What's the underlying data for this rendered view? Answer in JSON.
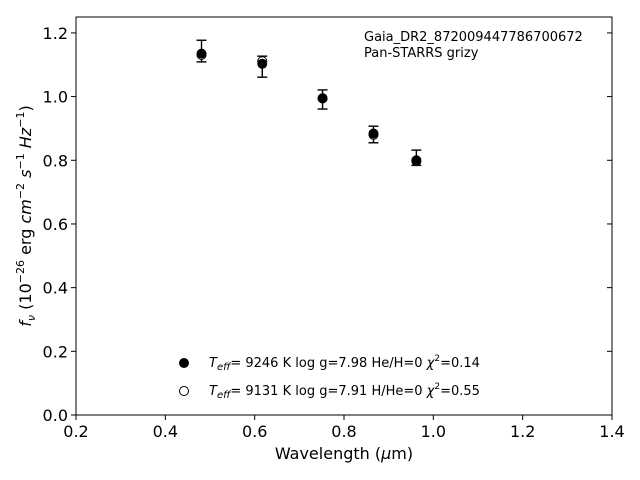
{
  "chart_data": {
    "type": "scatter",
    "title": "",
    "xlabel": "Wavelength (μm)",
    "ylabel": "f_ν (10^-26 erg cm^-2 s^-1 Hz^-1)",
    "xlim": [
      0.2,
      1.4
    ],
    "ylim": [
      0.0,
      1.25
    ],
    "xticks": [
      "0.2",
      "0.4",
      "0.6",
      "0.8",
      "1.0",
      "1.2",
      "1.4"
    ],
    "yticks": [
      "0.0",
      "0.2",
      "0.4",
      "0.6",
      "0.8",
      "1.0",
      "1.2"
    ],
    "grid": false,
    "annotations": [
      "Gaia_DR2_872009447786700672",
      "Pan-STARRS grizy"
    ],
    "observed": {
      "x": [
        0.481,
        0.617,
        0.752,
        0.866,
        0.962
      ],
      "y": [
        1.143,
        1.094,
        0.991,
        0.881,
        0.808
      ],
      "yerr": [
        0.034,
        0.033,
        0.03,
        0.026,
        0.024
      ]
    },
    "series": [
      {
        "name": "Teff= 9246 K log g=7.98 He/H=0 χ2=0.14",
        "marker": "filled",
        "x": [
          0.481,
          0.617,
          0.752,
          0.866,
          0.962
        ],
        "y": [
          1.135,
          1.103,
          0.995,
          0.884,
          0.8
        ]
      },
      {
        "name": "Teff= 9131 K log g=7.91 H/He=0 χ2=0.55",
        "marker": "open",
        "x": [
          0.481,
          0.617,
          0.752,
          0.866,
          0.962
        ],
        "y": [
          1.131,
          1.111,
          0.994,
          0.88,
          0.797
        ]
      }
    ],
    "legend": {
      "placement": "lower-center",
      "entries": [
        {
          "teff_value": "9246 K",
          "logg": "log g=7.98",
          "comp": "He/H=0",
          "chi_value": "=0.14"
        },
        {
          "teff_value": "9131 K",
          "logg": "log g=7.91",
          "comp": "H/He=0",
          "chi_value": "=0.55"
        }
      ]
    }
  }
}
